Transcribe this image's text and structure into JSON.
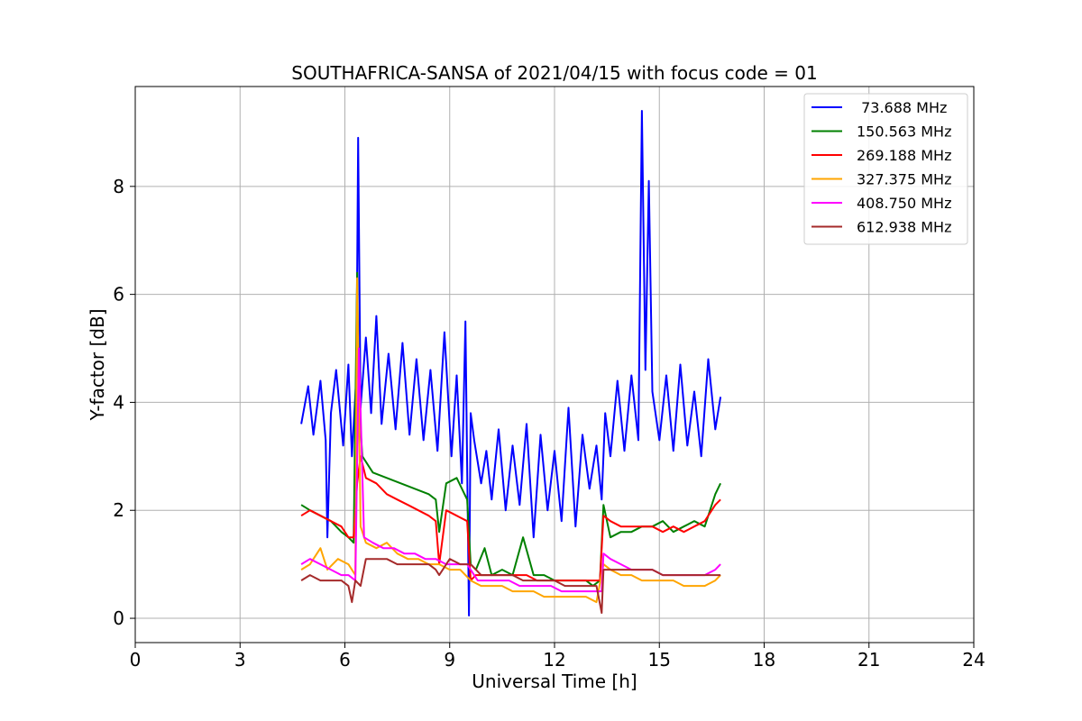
{
  "chart_data": {
    "type": "line",
    "title": "SOUTHAFRICA-SANSA of 2021/04/15 with focus code = 01",
    "xlabel": "Universal Time [h]",
    "ylabel": "Y-factor [dB]",
    "xlim": [
      0,
      24
    ],
    "ylim": [
      -0.45,
      9.85
    ],
    "xticks": [
      0,
      3,
      6,
      9,
      12,
      15,
      18,
      21,
      24
    ],
    "xtick_labels": [
      "0",
      "3",
      "6",
      "9",
      "12",
      "15",
      "18",
      "21",
      "24"
    ],
    "yticks": [
      0,
      2,
      4,
      6,
      8
    ],
    "ytick_labels": [
      "0",
      "2",
      "4",
      "6",
      "8"
    ],
    "grid": true,
    "legend_position": "top-right",
    "series": [
      {
        "name": " 73.688 MHz",
        "color": "#0000ff",
        "x": [
          4.75,
          4.95,
          5.1,
          5.3,
          5.45,
          5.5,
          5.6,
          5.75,
          5.95,
          6.1,
          6.2,
          6.33,
          6.38,
          6.45,
          6.6,
          6.75,
          6.9,
          7.05,
          7.25,
          7.45,
          7.65,
          7.85,
          8.05,
          8.25,
          8.45,
          8.65,
          8.85,
          9.05,
          9.2,
          9.35,
          9.45,
          9.55,
          9.6,
          9.7,
          9.9,
          10.05,
          10.2,
          10.4,
          10.6,
          10.8,
          11.0,
          11.2,
          11.4,
          11.6,
          11.8,
          12.0,
          12.2,
          12.4,
          12.6,
          12.8,
          13.0,
          13.2,
          13.35,
          13.45,
          13.6,
          13.8,
          14.0,
          14.2,
          14.4,
          14.5,
          14.6,
          14.7,
          14.8,
          15.0,
          15.2,
          15.4,
          15.6,
          15.8,
          16.0,
          16.2,
          16.4,
          16.6,
          16.75
        ],
        "values": [
          3.6,
          4.3,
          3.4,
          4.4,
          3.3,
          1.5,
          3.8,
          4.6,
          3.2,
          4.7,
          3.0,
          4.5,
          8.9,
          3.9,
          5.2,
          3.8,
          5.6,
          3.6,
          4.9,
          3.5,
          5.1,
          3.4,
          4.8,
          3.3,
          4.6,
          3.1,
          5.3,
          3.0,
          4.5,
          2.5,
          5.5,
          0.05,
          3.8,
          3.3,
          2.5,
          3.1,
          2.2,
          3.5,
          2.0,
          3.2,
          2.1,
          3.6,
          1.5,
          3.4,
          2.0,
          3.1,
          1.8,
          3.9,
          1.7,
          3.4,
          2.4,
          3.2,
          2.2,
          3.8,
          3.0,
          4.4,
          3.1,
          4.5,
          3.3,
          9.4,
          4.6,
          8.1,
          4.2,
          3.3,
          4.5,
          3.1,
          4.7,
          3.2,
          4.2,
          3.0,
          4.8,
          3.5,
          4.1
        ]
      },
      {
        "name": "150.563 MHz",
        "color": "#008000",
        "x": [
          4.75,
          5.0,
          5.3,
          5.6,
          5.9,
          6.1,
          6.25,
          6.35,
          6.4,
          6.5,
          6.8,
          7.2,
          7.6,
          8.0,
          8.4,
          8.6,
          8.7,
          8.9,
          9.2,
          9.5,
          9.6,
          9.75,
          10.0,
          10.2,
          10.5,
          10.8,
          11.1,
          11.4,
          11.7,
          12.0,
          12.3,
          12.6,
          12.9,
          13.1,
          13.3,
          13.4,
          13.6,
          13.9,
          14.2,
          14.5,
          14.8,
          15.1,
          15.4,
          15.7,
          16.0,
          16.3,
          16.6,
          16.75
        ],
        "values": [
          2.1,
          2.0,
          1.9,
          1.8,
          1.6,
          1.5,
          1.4,
          6.4,
          4.0,
          3.0,
          2.7,
          2.6,
          2.5,
          2.4,
          2.3,
          2.2,
          1.6,
          2.5,
          2.6,
          2.2,
          1.0,
          0.9,
          1.3,
          0.8,
          0.9,
          0.8,
          1.5,
          0.8,
          0.8,
          0.7,
          0.7,
          0.7,
          0.7,
          0.6,
          0.7,
          2.1,
          1.5,
          1.6,
          1.6,
          1.7,
          1.7,
          1.8,
          1.6,
          1.7,
          1.8,
          1.7,
          2.3,
          2.5
        ]
      },
      {
        "name": "269.188 MHz",
        "color": "#ff0000",
        "x": [
          4.75,
          5.0,
          5.3,
          5.6,
          5.9,
          6.1,
          6.25,
          6.35,
          6.45,
          6.6,
          6.9,
          7.2,
          7.5,
          7.8,
          8.1,
          8.4,
          8.6,
          8.7,
          8.9,
          9.2,
          9.5,
          9.6,
          9.75,
          10.0,
          10.3,
          10.6,
          10.9,
          11.2,
          11.5,
          11.8,
          12.1,
          12.4,
          12.7,
          13.0,
          13.3,
          13.4,
          13.6,
          13.9,
          14.2,
          14.5,
          14.8,
          15.1,
          15.4,
          15.7,
          16.0,
          16.3,
          16.6,
          16.75
        ],
        "values": [
          1.9,
          2.0,
          1.9,
          1.8,
          1.7,
          1.5,
          1.5,
          2.5,
          3.0,
          2.6,
          2.5,
          2.3,
          2.2,
          2.1,
          2.0,
          1.9,
          1.8,
          1.0,
          2.0,
          1.9,
          1.8,
          0.7,
          0.8,
          0.8,
          0.8,
          0.8,
          0.8,
          0.8,
          0.7,
          0.7,
          0.7,
          0.7,
          0.7,
          0.7,
          0.7,
          1.9,
          1.8,
          1.7,
          1.7,
          1.7,
          1.7,
          1.6,
          1.7,
          1.6,
          1.7,
          1.8,
          2.1,
          2.2
        ]
      },
      {
        "name": "327.375 MHz",
        "color": "#ffa500",
        "x": [
          4.75,
          5.0,
          5.3,
          5.5,
          5.8,
          6.1,
          6.3,
          6.35,
          6.45,
          6.6,
          6.9,
          7.2,
          7.5,
          7.8,
          8.1,
          8.4,
          8.7,
          9.0,
          9.3,
          9.6,
          9.9,
          10.2,
          10.5,
          10.8,
          11.1,
          11.4,
          11.7,
          12.0,
          12.3,
          12.6,
          12.9,
          13.2,
          13.4,
          13.6,
          13.9,
          14.2,
          14.5,
          14.8,
          15.1,
          15.4,
          15.7,
          16.0,
          16.3,
          16.6,
          16.75
        ],
        "values": [
          0.9,
          1.0,
          1.3,
          0.9,
          1.1,
          1.0,
          0.8,
          6.3,
          1.7,
          1.4,
          1.3,
          1.4,
          1.2,
          1.1,
          1.1,
          1.0,
          1.0,
          0.9,
          0.9,
          0.7,
          0.6,
          0.6,
          0.6,
          0.5,
          0.5,
          0.5,
          0.4,
          0.4,
          0.4,
          0.4,
          0.4,
          0.3,
          1.0,
          0.9,
          0.8,
          0.8,
          0.7,
          0.7,
          0.7,
          0.7,
          0.6,
          0.6,
          0.6,
          0.7,
          0.8
        ]
      },
      {
        "name": "408.750 MHz",
        "color": "#ff00ff",
        "x": [
          4.75,
          5.0,
          5.3,
          5.6,
          5.9,
          6.1,
          6.3,
          6.4,
          6.55,
          6.8,
          7.1,
          7.4,
          7.7,
          8.0,
          8.3,
          8.6,
          8.9,
          9.2,
          9.5,
          9.8,
          10.1,
          10.4,
          10.7,
          11.0,
          11.3,
          11.6,
          11.9,
          12.2,
          12.5,
          12.8,
          13.1,
          13.35,
          13.4,
          13.6,
          13.9,
          14.2,
          14.5,
          14.8,
          15.1,
          15.4,
          15.7,
          16.0,
          16.3,
          16.6,
          16.75
        ],
        "values": [
          1.0,
          1.1,
          1.0,
          0.9,
          0.8,
          0.8,
          0.7,
          5.0,
          1.5,
          1.4,
          1.3,
          1.3,
          1.2,
          1.2,
          1.1,
          1.1,
          1.0,
          1.0,
          1.0,
          0.7,
          0.7,
          0.7,
          0.7,
          0.6,
          0.6,
          0.6,
          0.6,
          0.5,
          0.5,
          0.5,
          0.5,
          0.5,
          1.2,
          1.1,
          1.0,
          0.9,
          0.9,
          0.9,
          0.8,
          0.8,
          0.8,
          0.8,
          0.8,
          0.9,
          1.0
        ]
      },
      {
        "name": "612.938 MHz",
        "color": "#a52a2a",
        "x": [
          4.75,
          5.0,
          5.3,
          5.6,
          5.9,
          6.1,
          6.2,
          6.3,
          6.45,
          6.6,
          6.9,
          7.2,
          7.5,
          7.8,
          8.1,
          8.4,
          8.6,
          8.7,
          9.0,
          9.3,
          9.6,
          9.9,
          10.2,
          10.5,
          10.8,
          11.1,
          11.4,
          11.7,
          12.0,
          12.3,
          12.6,
          12.9,
          13.2,
          13.35,
          13.4,
          13.6,
          13.9,
          14.2,
          14.5,
          14.8,
          15.1,
          15.4,
          15.7,
          16.0,
          16.3,
          16.6,
          16.75
        ],
        "values": [
          0.7,
          0.8,
          0.7,
          0.7,
          0.7,
          0.6,
          0.3,
          0.7,
          0.6,
          1.1,
          1.1,
          1.1,
          1.0,
          1.0,
          1.0,
          1.0,
          0.9,
          0.8,
          1.1,
          1.0,
          1.0,
          0.8,
          0.8,
          0.8,
          0.8,
          0.7,
          0.7,
          0.7,
          0.7,
          0.6,
          0.6,
          0.6,
          0.6,
          0.1,
          0.9,
          0.9,
          0.9,
          0.9,
          0.9,
          0.9,
          0.8,
          0.8,
          0.8,
          0.8,
          0.8,
          0.8,
          0.8
        ]
      }
    ]
  }
}
